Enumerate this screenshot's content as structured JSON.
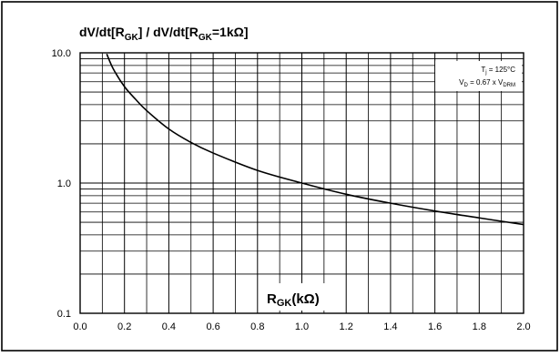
{
  "chart_data": {
    "type": "line",
    "title": "dV/dt[RGK] / dV/dt[RGK=1kΩ]",
    "title_parts": {
      "a": "dV/dt[R",
      "a_sub": "GK",
      "b": "] / dV/dt[R",
      "b_sub": "GK",
      "c": "=1kΩ]"
    },
    "xlabel": "RGK(kΩ)",
    "xlabel_parts": {
      "main": "R",
      "sub": "GK",
      "rest": "(kΩ)"
    },
    "ylabel": "",
    "xlim": [
      0.0,
      2.0
    ],
    "ylim": [
      0.1,
      10.0
    ],
    "yscale": "log",
    "grid": true,
    "x_ticks": [
      "0.0",
      "0.2",
      "0.4",
      "0.6",
      "0.8",
      "1.0",
      "1.2",
      "1.4",
      "1.6",
      "1.8",
      "2.0"
    ],
    "y_ticks": [
      "0.1",
      "1.0",
      "10.0"
    ],
    "annotation": {
      "line1_main": "T",
      "line1_sub": "j",
      "line1_rest": " = 125°C",
      "line2_main": "V",
      "line2_sub": "D",
      "line2_mid": " = 0.67 x V",
      "line2_sub2": "DRM"
    },
    "series": [
      {
        "x": [
          0.12,
          0.15,
          0.2,
          0.25,
          0.3,
          0.4,
          0.5,
          0.6,
          0.8,
          1.0,
          1.2,
          1.4,
          1.6,
          1.8,
          2.0
        ],
        "y": [
          9.8,
          7.5,
          5.5,
          4.4,
          3.6,
          2.6,
          2.05,
          1.7,
          1.25,
          1.0,
          0.82,
          0.7,
          0.61,
          0.54,
          0.48
        ]
      }
    ]
  }
}
